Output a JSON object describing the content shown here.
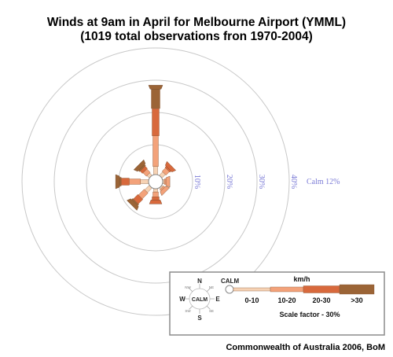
{
  "title_line1": "Winds at 9am in April for Melbourne Airport (YMML)",
  "title_line2": "(1019 total observations fron 1970-2004)",
  "credit": "Commonwealth of Australia 2006, BoM",
  "chart_data": {
    "type": "wind-rose",
    "calm_label": "Calm 12%",
    "ring_labels": [
      "10%",
      "20%",
      "30%",
      "40%"
    ],
    "ring_values": [
      10,
      20,
      30,
      40
    ],
    "speed_classes": [
      "0-10",
      "10-20",
      "20-30",
      ">30"
    ],
    "speed_unit": "km/h",
    "colors": [
      "#f6d2b4",
      "#f3a27a",
      "#d8693c",
      "#9b6436"
    ],
    "directions": [
      {
        "dir": "N",
        "values": [
          2.5,
          9.5,
          8.5,
          6
        ]
      },
      {
        "dir": "NE",
        "values": [
          1.5,
          1.5,
          0.5,
          0
        ]
      },
      {
        "dir": "E",
        "values": [
          0.5,
          0.5,
          0,
          0
        ]
      },
      {
        "dir": "SE",
        "values": [
          0.5,
          0.5,
          0,
          0
        ]
      },
      {
        "dir": "S",
        "values": [
          1,
          1.5,
          1,
          0
        ]
      },
      {
        "dir": "SW",
        "values": [
          2,
          2.5,
          2,
          0.5
        ]
      },
      {
        "dir": "W",
        "values": [
          2.5,
          3.5,
          2.5,
          0.5
        ]
      },
      {
        "dir": "NW",
        "values": [
          1,
          1.5,
          1,
          0.5
        ]
      }
    ]
  },
  "legend": {
    "compass": {
      "n": "N",
      "s": "S",
      "e": "E",
      "w": "W",
      "ne": "NE",
      "nw": "NW",
      "se": "SE",
      "sw": "SW",
      "center": "CALM"
    },
    "calm": "CALM",
    "unit": "km/h",
    "classes": [
      "0-10",
      "10-20",
      "20-30",
      ">30"
    ],
    "scale_factor": "Scale factor - 30%"
  }
}
